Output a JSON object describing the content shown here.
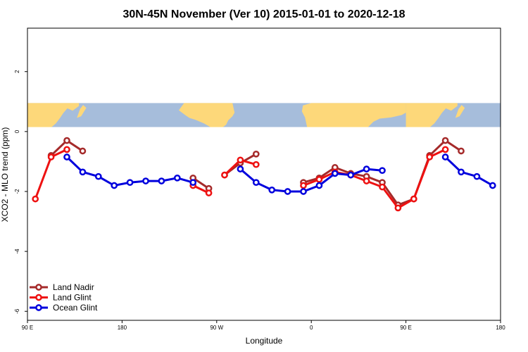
{
  "chart_data": {
    "type": "line",
    "title": "30N-45N November (Ver 10)   2015-01-01 to 2020-12-18",
    "xlabel": "Longitude",
    "ylabel": "XCO2 - MLO trend (ppm)",
    "xlim": [
      90,
      540
    ],
    "ylim": [
      -6.3,
      3.45
    ],
    "x_ticks": [
      {
        "value": 90,
        "label": "90 E"
      },
      {
        "value": 180,
        "label": "180"
      },
      {
        "value": 270,
        "label": "90 W"
      },
      {
        "value": 360,
        "label": "0"
      },
      {
        "value": 450,
        "label": "90 E"
      },
      {
        "value": 540,
        "label": "180"
      }
    ],
    "y_ticks": [
      {
        "value": 2,
        "label": "2"
      },
      {
        "value": 0,
        "label": "0"
      },
      {
        "value": -2,
        "label": "-2"
      },
      {
        "value": -4,
        "label": "-4"
      },
      {
        "value": -6,
        "label": "-6"
      }
    ],
    "legend_position": "bottom-left",
    "map_band": {
      "y_from": 0.15,
      "y_to": 0.95,
      "ocean_color": "#a6bddb",
      "land_color": "#fdd87a"
    },
    "series": [
      {
        "name": "Land Nadir",
        "color": "#a52a2a",
        "segments": [
          [
            [
              112.5,
              -0.8
            ],
            [
              127.5,
              -0.3
            ],
            [
              142.5,
              -0.65
            ]
          ],
          [
            [
              247.5,
              -1.55
            ],
            [
              262.5,
              -1.9
            ]
          ],
          [
            [
              277.5,
              -1.45
            ],
            [
              292.5,
              -1.05
            ],
            [
              307.5,
              -0.75
            ]
          ],
          [
            [
              352.5,
              -1.7
            ],
            [
              367.5,
              -1.55
            ],
            [
              382.5,
              -1.2
            ],
            [
              397.5,
              -1.4
            ],
            [
              412.5,
              -1.5
            ],
            [
              427.5,
              -1.7
            ],
            [
              442.5,
              -2.45
            ],
            [
              457.5,
              -2.25
            ],
            [
              472.5,
              -0.8
            ],
            [
              487.5,
              -0.3
            ],
            [
              502.5,
              -0.65
            ]
          ]
        ]
      },
      {
        "name": "Land Glint",
        "color": "#ee1111",
        "segments": [
          [
            [
              97.5,
              -2.25
            ],
            [
              112.5,
              -0.85
            ],
            [
              127.5,
              -0.6
            ]
          ],
          [
            [
              247.5,
              -1.8
            ],
            [
              262.5,
              -2.05
            ]
          ],
          [
            [
              277.5,
              -1.45
            ],
            [
              292.5,
              -0.95
            ],
            [
              307.5,
              -1.1
            ]
          ],
          [
            [
              352.5,
              -1.8
            ],
            [
              367.5,
              -1.6
            ],
            [
              382.5,
              -1.35
            ],
            [
              397.5,
              -1.45
            ],
            [
              412.5,
              -1.65
            ],
            [
              427.5,
              -1.85
            ],
            [
              442.5,
              -2.55
            ],
            [
              457.5,
              -2.25
            ],
            [
              472.5,
              -0.85
            ],
            [
              487.5,
              -0.6
            ]
          ]
        ]
      },
      {
        "name": "Ocean Glint",
        "color": "#0000dd",
        "segments": [
          [
            [
              127.5,
              -0.85
            ],
            [
              142.5,
              -1.35
            ],
            [
              157.5,
              -1.5
            ],
            [
              172.5,
              -1.8
            ],
            [
              187.5,
              -1.7
            ],
            [
              202.5,
              -1.65
            ],
            [
              217.5,
              -1.65
            ],
            [
              232.5,
              -1.55
            ],
            [
              247.5,
              -1.7
            ]
          ],
          [
            [
              292.5,
              -1.25
            ],
            [
              307.5,
              -1.7
            ],
            [
              322.5,
              -1.95
            ],
            [
              337.5,
              -2.0
            ],
            [
              352.5,
              -2.0
            ],
            [
              367.5,
              -1.8
            ],
            [
              382.5,
              -1.4
            ],
            [
              397.5,
              -1.45
            ],
            [
              412.5,
              -1.25
            ],
            [
              427.5,
              -1.3
            ]
          ],
          [
            [
              487.5,
              -0.85
            ],
            [
              502.5,
              -1.35
            ],
            [
              517.5,
              -1.5
            ],
            [
              532.5,
              -1.8
            ]
          ]
        ]
      }
    ]
  }
}
